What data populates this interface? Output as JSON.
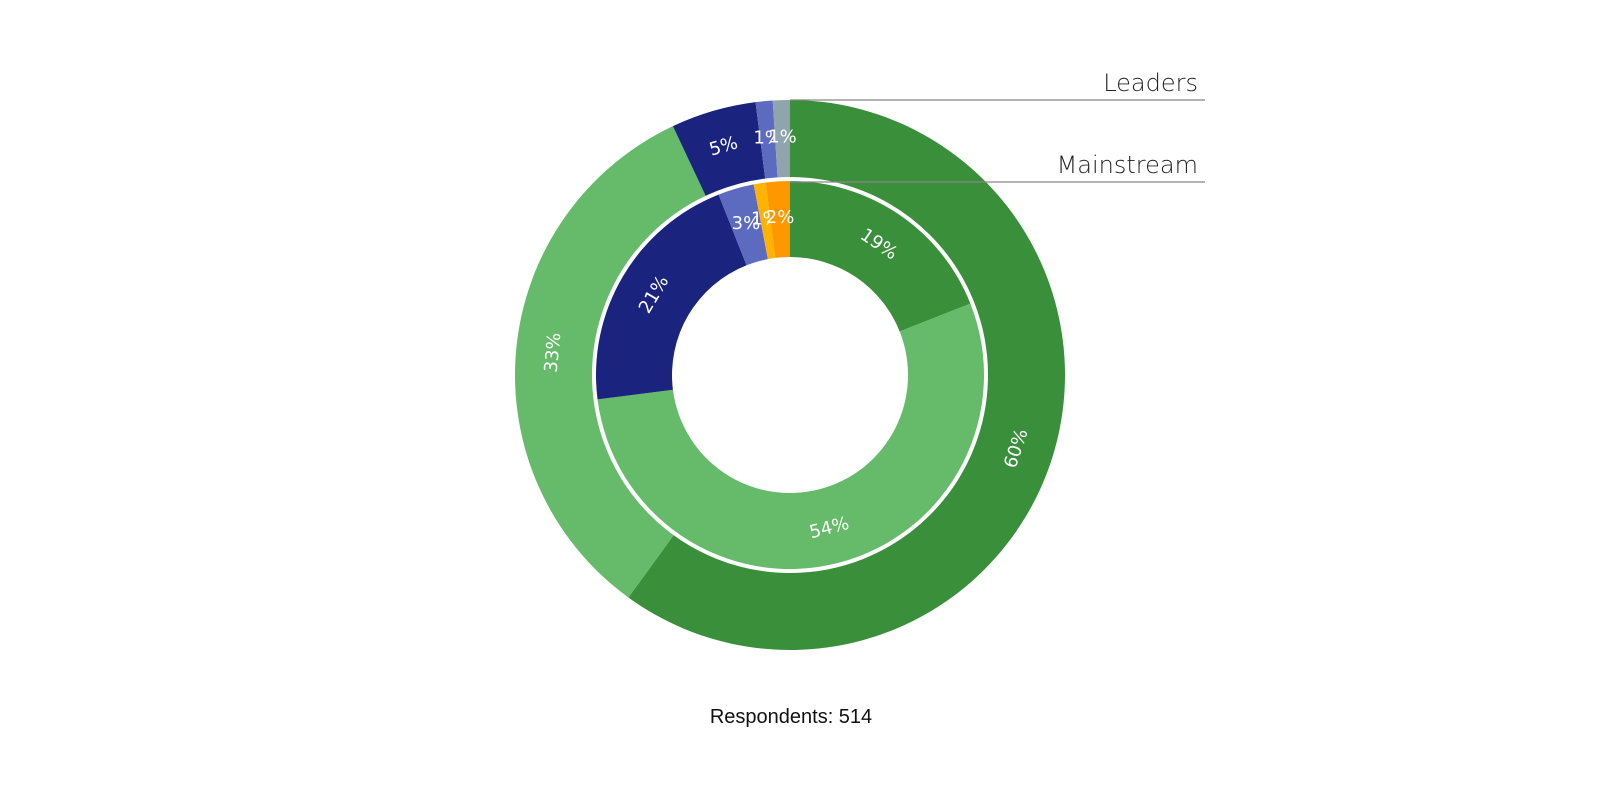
{
  "chart_data": {
    "type": "pie",
    "subtype": "nested-donut",
    "caption": "Respondents: 514",
    "series": [
      {
        "name": "Leaders",
        "ring": "outer",
        "slices": [
          {
            "value": 60,
            "label": "60%",
            "color": "#3a8f3b"
          },
          {
            "value": 33,
            "label": "33%",
            "color": "#66bb6a"
          },
          {
            "value": 5,
            "label": "5%",
            "color": "#1a237e"
          },
          {
            "value": 1,
            "label": "1%",
            "color": "#5c6bc0"
          },
          {
            "value": 1,
            "label": "1%",
            "color": "#90a4ae"
          }
        ]
      },
      {
        "name": "Mainstream",
        "ring": "inner",
        "slices": [
          {
            "value": 19,
            "label": "19%",
            "color": "#3a8f3b"
          },
          {
            "value": 54,
            "label": "54%",
            "color": "#66bb6a"
          },
          {
            "value": 21,
            "label": "21%",
            "color": "#1a237e"
          },
          {
            "value": 3,
            "label": "3%",
            "color": "#5c6bc0"
          },
          {
            "value": 1,
            "label": "1%",
            "color": "#ffb300"
          },
          {
            "value": 2,
            "label": "2%",
            "color": "#ff9800"
          }
        ]
      }
    ]
  }
}
